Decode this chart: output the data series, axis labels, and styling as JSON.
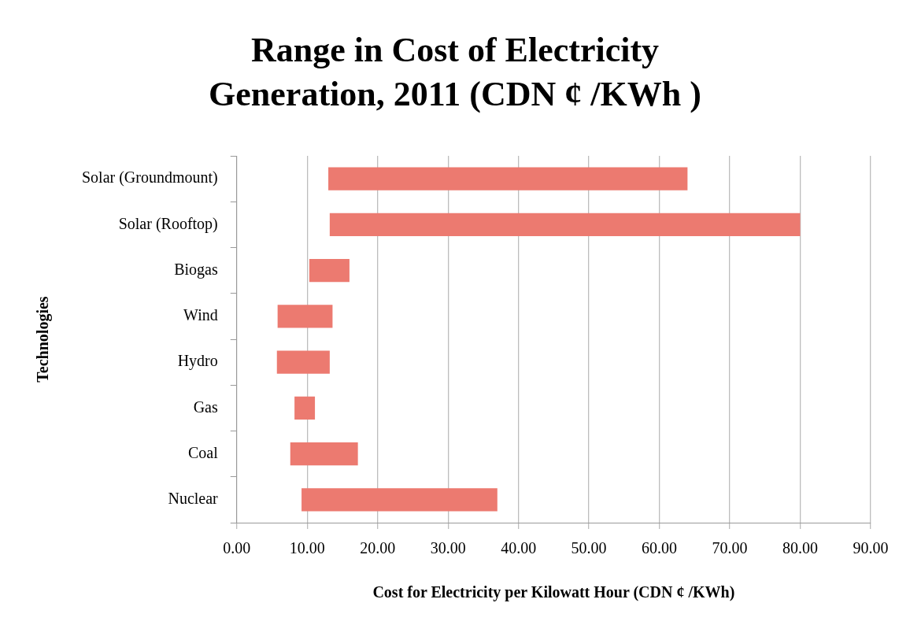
{
  "chart_data": {
    "type": "bar",
    "orientation": "horizontal",
    "title": "Range in Cost of Electricity Generation, 2011 (CDN ¢ /KWh )",
    "xlabel": "Cost for Electricity per Kilowatt Hour (CDN ¢ /KWh)",
    "ylabel": "Technologies",
    "categories": [
      "Solar (Groundmount)",
      "Solar (Rooftop)",
      "Biogas",
      "Wind",
      "Hydro",
      "Gas",
      "Coal",
      "Nuclear"
    ],
    "base": [
      13,
      13.2,
      10.3,
      5.8,
      5.7,
      8.2,
      7.6,
      9.2
    ],
    "values": [
      51,
      66.8,
      5.7,
      7.8,
      7.5,
      2.9,
      9.6,
      27.8
    ],
    "color": "#ec7a70",
    "xlim": [
      0,
      90
    ],
    "xticks": [
      {
        "value": 0,
        "label": "0.00"
      },
      {
        "value": 10,
        "label": "10.00"
      },
      {
        "value": 20,
        "label": "20.00"
      },
      {
        "value": 30,
        "label": "30.00"
      },
      {
        "value": 40,
        "label": "40.00"
      },
      {
        "value": 50,
        "label": "50.00"
      },
      {
        "value": 60,
        "label": "60.00"
      },
      {
        "value": 70,
        "label": "70.00"
      },
      {
        "value": 80,
        "label": "80.00"
      },
      {
        "value": 90,
        "label": "90.00"
      }
    ],
    "grid": "x"
  }
}
